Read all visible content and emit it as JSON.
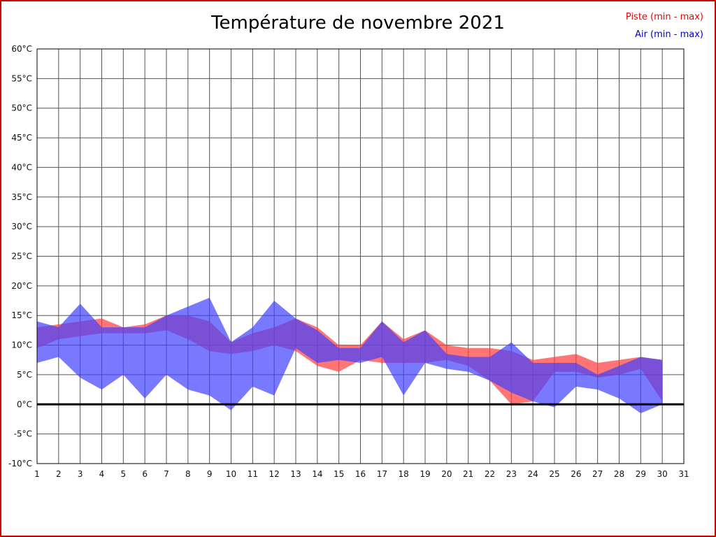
{
  "page": {
    "title": "Température de novembre 2021"
  },
  "legend": [
    {
      "label": "Piste (min - max)",
      "color": "#ee0000"
    },
    {
      "label": "Air (min - max)",
      "color": "#0000cc"
    }
  ],
  "chart_data": {
    "type": "area",
    "title": "Température de novembre 2021",
    "xlabel": "",
    "ylabel": "",
    "xlim": [
      1,
      31
    ],
    "ylim": [
      -10,
      60
    ],
    "grid": true,
    "zero_line": true,
    "legend_position": "top-right",
    "x": [
      1,
      2,
      3,
      4,
      5,
      6,
      7,
      8,
      9,
      10,
      11,
      12,
      13,
      14,
      15,
      16,
      17,
      18,
      19,
      20,
      21,
      22,
      23,
      24,
      25,
      26,
      27,
      28,
      29,
      30
    ],
    "series": [
      {
        "name": "Piste (min - max)",
        "color": "#ff4040",
        "fill_opacity": 0.72,
        "min": [
          9.5,
          11,
          11.5,
          12,
          12,
          12,
          12.5,
          11,
          9,
          8.5,
          9,
          10,
          9,
          6.5,
          5.5,
          7.5,
          7,
          7,
          7,
          7.5,
          6.5,
          4,
          0,
          0.5,
          5.5,
          5.5,
          4.5,
          5,
          6,
          0.5
        ],
        "max": [
          13,
          13.5,
          14,
          14.5,
          13,
          13.5,
          15,
          15,
          14,
          10.5,
          12,
          13,
          14.5,
          13,
          10,
          10,
          14,
          11,
          12.5,
          10,
          9.5,
          9.5,
          9,
          7.5,
          8,
          8.5,
          7,
          7.5,
          8,
          7.5
        ]
      },
      {
        "name": "Air (min - max)",
        "color": "#4040ff",
        "fill_opacity": 0.7,
        "min": [
          7,
          8,
          4.5,
          2.5,
          5,
          1,
          5,
          2.5,
          1.5,
          -1,
          3,
          1.5,
          9.5,
          7,
          7.5,
          7,
          8,
          1.5,
          7,
          6,
          5.5,
          4,
          2,
          0.5,
          -0.5,
          3,
          2.5,
          1,
          -1.5,
          0
        ],
        "max": [
          14,
          13,
          17,
          13,
          13,
          13,
          15,
          16.5,
          18,
          10.5,
          13,
          17.5,
          14.5,
          12.5,
          9.5,
          9.5,
          14,
          10.5,
          12.5,
          8.5,
          8,
          8,
          10.5,
          7,
          7,
          7,
          5,
          6.5,
          8,
          7.5
        ]
      }
    ],
    "yticks": [
      {
        "value": 60,
        "label": "60°C"
      },
      {
        "value": 55,
        "label": "55°C"
      },
      {
        "value": 50,
        "label": "50°C"
      },
      {
        "value": 45,
        "label": "45°C"
      },
      {
        "value": 40,
        "label": "40°C"
      },
      {
        "value": 35,
        "label": "35°C"
      },
      {
        "value": 30,
        "label": "30°C"
      },
      {
        "value": 25,
        "label": "25°C"
      },
      {
        "value": 20,
        "label": "20°C"
      },
      {
        "value": 15,
        "label": "15°C"
      },
      {
        "value": 10,
        "label": "10°C"
      },
      {
        "value": 5,
        "label": "5°C"
      },
      {
        "value": 0,
        "label": "0°C"
      },
      {
        "value": -5,
        "label": "-5°C"
      },
      {
        "value": -10,
        "label": "-10°C"
      }
    ],
    "xticks": [
      "1",
      "2",
      "3",
      "4",
      "5",
      "6",
      "7",
      "8",
      "9",
      "10",
      "11",
      "12",
      "13",
      "14",
      "15",
      "16",
      "17",
      "18",
      "19",
      "20",
      "21",
      "22",
      "23",
      "24",
      "25",
      "26",
      "27",
      "28",
      "29",
      "30",
      "31"
    ]
  }
}
